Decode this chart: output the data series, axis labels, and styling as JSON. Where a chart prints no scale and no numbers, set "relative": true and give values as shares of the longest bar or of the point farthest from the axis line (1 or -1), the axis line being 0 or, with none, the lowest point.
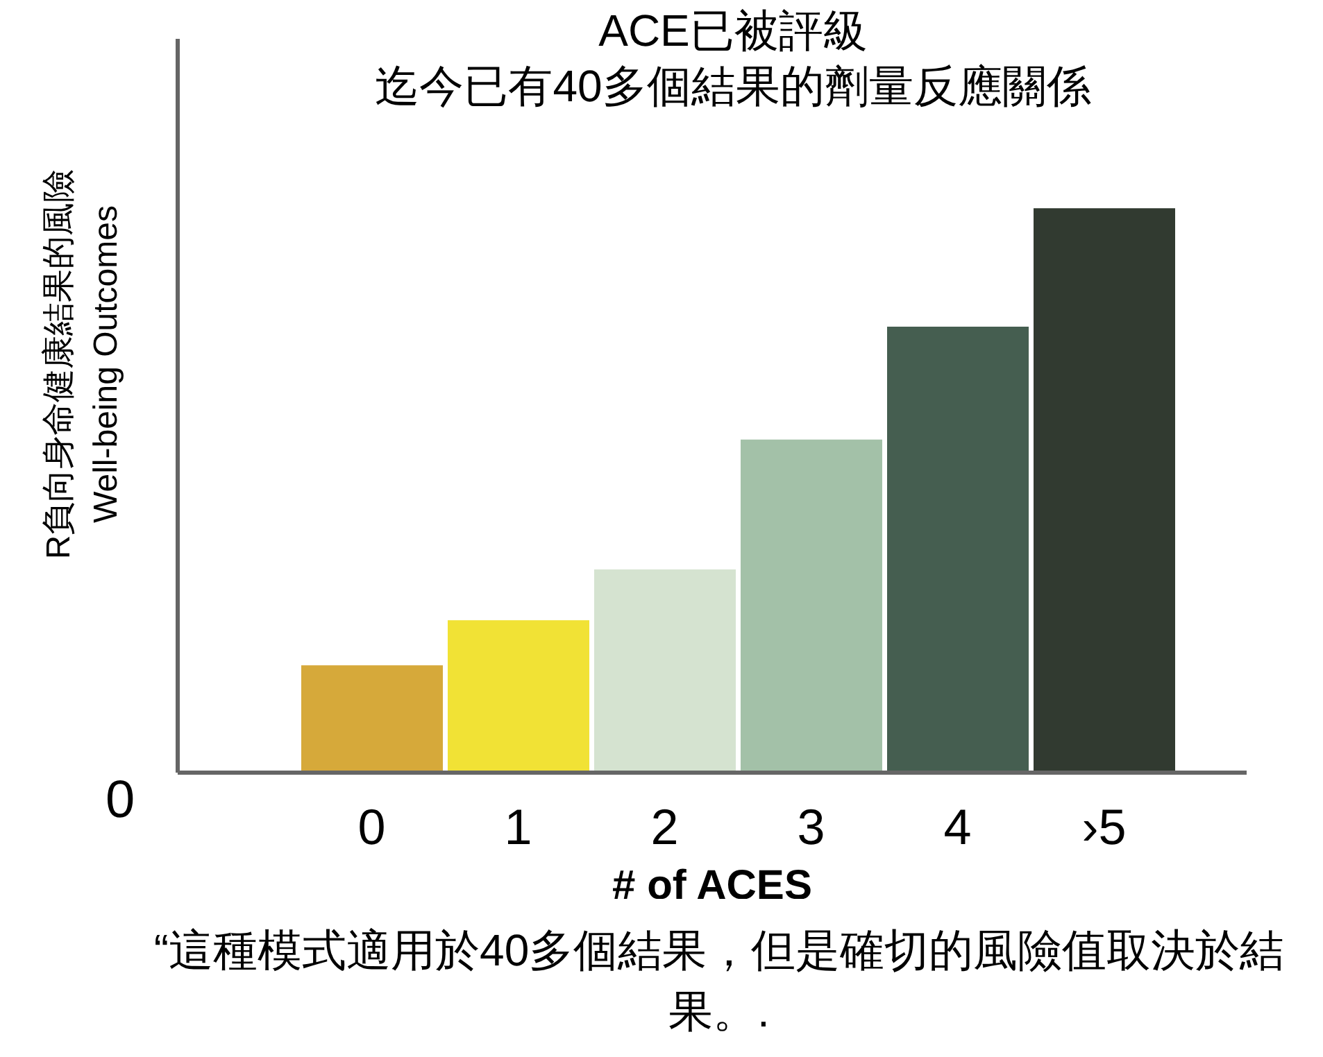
{
  "chart_data": {
    "type": "bar",
    "title": "ACE已被評級",
    "subtitle": "迄今已有40多個結果的劑量反應關係",
    "xlabel": "# of ACES",
    "ylabel": "R負向身命健康結果的風險\nWell-being Outcomes",
    "categories": [
      "0",
      "1",
      "2",
      "3",
      "4",
      "›5"
    ],
    "values": [
      0.19,
      0.27,
      0.36,
      0.59,
      0.79,
      1
    ],
    "colors": [
      "#d6a93a",
      "#f1e235",
      "#d5e3d0",
      "#a3c1a8",
      "#455e50",
      "#313a30"
    ],
    "relative": true,
    "annotations": [
      "0",
      "“這種模式適用於40多個結果，但是確切的風險值取決於結果。."
    ]
  }
}
